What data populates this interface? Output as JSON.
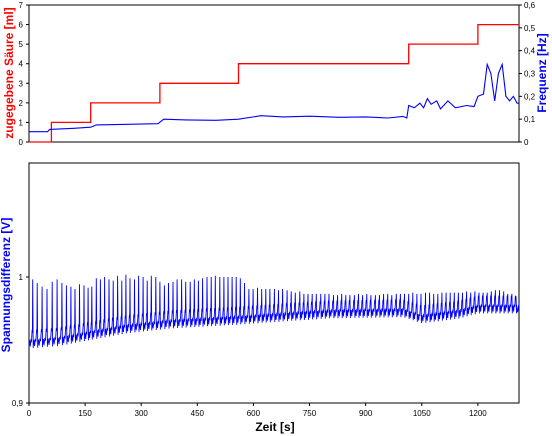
{
  "chart_data": [
    {
      "type": "line",
      "title": "",
      "x": {
        "label": "",
        "lim": [
          0,
          1310
        ]
      },
      "y_left": {
        "label": "zugegebene Säure [ml]",
        "lim": [
          0,
          7
        ],
        "ticks": [
          "0",
          "1",
          "2",
          "3",
          "4",
          "5",
          "6",
          "7"
        ],
        "color": "#ff0000"
      },
      "y_right": {
        "label": "Frequenz [Hz]",
        "lim": [
          0,
          0.6
        ],
        "ticks": [
          "0",
          "0,1",
          "0,2",
          "0,3",
          "0,4",
          "0,5",
          "0,6"
        ],
        "color": "#0000ff"
      },
      "series": [
        {
          "axis": "left",
          "color": "#ff0000",
          "points": [
            [
              0,
              0
            ],
            [
              60,
              0
            ],
            [
              60,
              1
            ],
            [
              165,
              1
            ],
            [
              165,
              2
            ],
            [
              350,
              2
            ],
            [
              350,
              3
            ],
            [
              560,
              3
            ],
            [
              560,
              4
            ],
            [
              1015,
              4
            ],
            [
              1015,
              5
            ],
            [
              1200,
              5
            ],
            [
              1200,
              6
            ],
            [
              1310,
              6
            ]
          ]
        },
        {
          "axis": "right",
          "color": "#0000ff",
          "points": [
            [
              0,
              0.045
            ],
            [
              50,
              0.045
            ],
            [
              55,
              0.055
            ],
            [
              120,
              0.06
            ],
            [
              165,
              0.065
            ],
            [
              180,
              0.075
            ],
            [
              345,
              0.08
            ],
            [
              360,
              0.1
            ],
            [
              420,
              0.097
            ],
            [
              500,
              0.095
            ],
            [
              560,
              0.1
            ],
            [
              620,
              0.115
            ],
            [
              680,
              0.11
            ],
            [
              750,
              0.113
            ],
            [
              830,
              0.108
            ],
            [
              900,
              0.11
            ],
            [
              960,
              0.105
            ],
            [
              1000,
              0.112
            ],
            [
              1010,
              0.105
            ],
            [
              1015,
              0.16
            ],
            [
              1030,
              0.15
            ],
            [
              1045,
              0.17
            ],
            [
              1055,
              0.15
            ],
            [
              1065,
              0.19
            ],
            [
              1075,
              0.165
            ],
            [
              1090,
              0.18
            ],
            [
              1100,
              0.145
            ],
            [
              1120,
              0.18
            ],
            [
              1140,
              0.15
            ],
            [
              1170,
              0.16
            ],
            [
              1190,
              0.155
            ],
            [
              1200,
              0.2
            ],
            [
              1215,
              0.21
            ],
            [
              1225,
              0.34
            ],
            [
              1235,
              0.3
            ],
            [
              1245,
              0.18
            ],
            [
              1255,
              0.3
            ],
            [
              1265,
              0.34
            ],
            [
              1275,
              0.2
            ],
            [
              1285,
              0.18
            ],
            [
              1295,
              0.2
            ],
            [
              1305,
              0.17
            ],
            [
              1310,
              0.17
            ]
          ]
        }
      ]
    },
    {
      "type": "line",
      "title": "",
      "x": {
        "label": "Zeit [s]",
        "lim": [
          0,
          1310
        ],
        "ticks": [
          "0",
          "150",
          "300",
          "450",
          "600",
          "750",
          "900",
          "1050",
          "1200"
        ]
      },
      "y": {
        "label": "Spannungsdifferenz [V]",
        "scale": "log",
        "lim": [
          0.9,
          1.1
        ],
        "ticks": [
          "0,9",
          "1"
        ],
        "color": "#0000ff"
      },
      "series": [
        {
          "color": "#0000ff",
          "baseline": [
            [
              0,
              0.946
            ],
            [
              80,
              0.948
            ],
            [
              150,
              0.952
            ],
            [
              260,
              0.958
            ],
            [
              380,
              0.962
            ],
            [
              560,
              0.965
            ],
            [
              700,
              0.968
            ],
            [
              800,
              0.97
            ],
            [
              1000,
              0.971
            ],
            [
              1050,
              0.966
            ],
            [
              1150,
              0.97
            ],
            [
              1200,
              0.974
            ],
            [
              1310,
              0.974
            ]
          ],
          "peaks": [
            [
              10,
              0.998
            ],
            [
              22,
              0.995
            ],
            [
              35,
              0.992
            ],
            [
              48,
              0.99
            ],
            [
              62,
              0.996
            ],
            [
              75,
              0.998
            ],
            [
              88,
              0.995
            ],
            [
              100,
              0.993
            ],
            [
              112,
              0.992
            ],
            [
              123,
              0.99
            ],
            [
              135,
              0.994
            ],
            [
              147,
              0.993
            ],
            [
              158,
              0.991
            ],
            [
              168,
              0.992
            ],
            [
              180,
              0.999
            ],
            [
              191,
              0.998
            ],
            [
              202,
              1.0
            ],
            [
              214,
              0.998
            ],
            [
              225,
              0.997
            ],
            [
              237,
              1.001
            ],
            [
              248,
              0.997
            ],
            [
              259,
              1.002
            ],
            [
              270,
              0.999
            ],
            [
              282,
              0.998
            ],
            [
              293,
              1.001
            ],
            [
              305,
              1.0
            ],
            [
              316,
              0.997
            ],
            [
              327,
              1.001
            ],
            [
              339,
              1.0
            ],
            [
              350,
              0.996
            ],
            [
              362,
              0.993
            ],
            [
              373,
              0.995
            ],
            [
              385,
              0.996
            ],
            [
              396,
              0.998
            ],
            [
              408,
              0.998
            ],
            [
              419,
              0.996
            ],
            [
              431,
              0.996
            ],
            [
              442,
              0.998
            ],
            [
              453,
              0.997
            ],
            [
              464,
              0.999
            ],
            [
              476,
              1.0
            ],
            [
              487,
              1.0
            ],
            [
              498,
              1.001
            ],
            [
              510,
              1.0
            ],
            [
              521,
              1.0
            ],
            [
              532,
              1.0
            ],
            [
              543,
              1.0
            ],
            [
              554,
              1.0
            ],
            [
              565,
              0.999
            ],
            [
              576,
              0.995
            ],
            [
              588,
              0.99
            ],
            [
              599,
              0.99
            ],
            [
              611,
              0.991
            ],
            [
              622,
              0.99
            ],
            [
              633,
              0.99
            ],
            [
              644,
              0.99
            ],
            [
              656,
              0.99
            ],
            [
              667,
              0.989
            ],
            [
              678,
              0.99
            ],
            [
              690,
              0.989
            ],
            [
              701,
              0.988
            ],
            [
              712,
              0.987
            ],
            [
              724,
              0.988
            ],
            [
              735,
              0.986
            ],
            [
              746,
              0.986
            ],
            [
              757,
              0.986
            ],
            [
              768,
              0.986
            ],
            [
              780,
              0.986
            ],
            [
              791,
              0.986
            ],
            [
              802,
              0.986
            ],
            [
              814,
              0.985
            ],
            [
              825,
              0.985
            ],
            [
              836,
              0.986
            ],
            [
              847,
              0.985
            ],
            [
              858,
              0.985
            ],
            [
              870,
              0.985
            ],
            [
              881,
              0.986
            ],
            [
              892,
              0.985
            ],
            [
              903,
              0.986
            ],
            [
              914,
              0.985
            ],
            [
              926,
              0.985
            ],
            [
              937,
              0.985
            ],
            [
              948,
              0.986
            ],
            [
              959,
              0.986
            ],
            [
              970,
              0.985
            ],
            [
              982,
              0.986
            ],
            [
              993,
              0.986
            ],
            [
              1004,
              0.986
            ],
            [
              1015,
              0.986
            ],
            [
              1026,
              0.987
            ],
            [
              1037,
              0.986
            ],
            [
              1048,
              0.986
            ],
            [
              1060,
              0.987
            ],
            [
              1071,
              0.987
            ],
            [
              1082,
              0.986
            ],
            [
              1093,
              0.986
            ],
            [
              1104,
              0.987
            ],
            [
              1115,
              0.987
            ],
            [
              1126,
              0.987
            ],
            [
              1137,
              0.987
            ],
            [
              1148,
              0.987
            ],
            [
              1159,
              0.987
            ],
            [
              1170,
              0.988
            ],
            [
              1181,
              0.987
            ],
            [
              1192,
              0.988
            ],
            [
              1203,
              0.987
            ],
            [
              1214,
              0.987
            ],
            [
              1225,
              0.987
            ],
            [
              1236,
              0.988
            ],
            [
              1247,
              0.989
            ],
            [
              1258,
              0.989
            ],
            [
              1269,
              0.988
            ],
            [
              1280,
              0.986
            ],
            [
              1291,
              0.986
            ],
            [
              1302,
              0.984
            ]
          ]
        }
      ]
    }
  ]
}
